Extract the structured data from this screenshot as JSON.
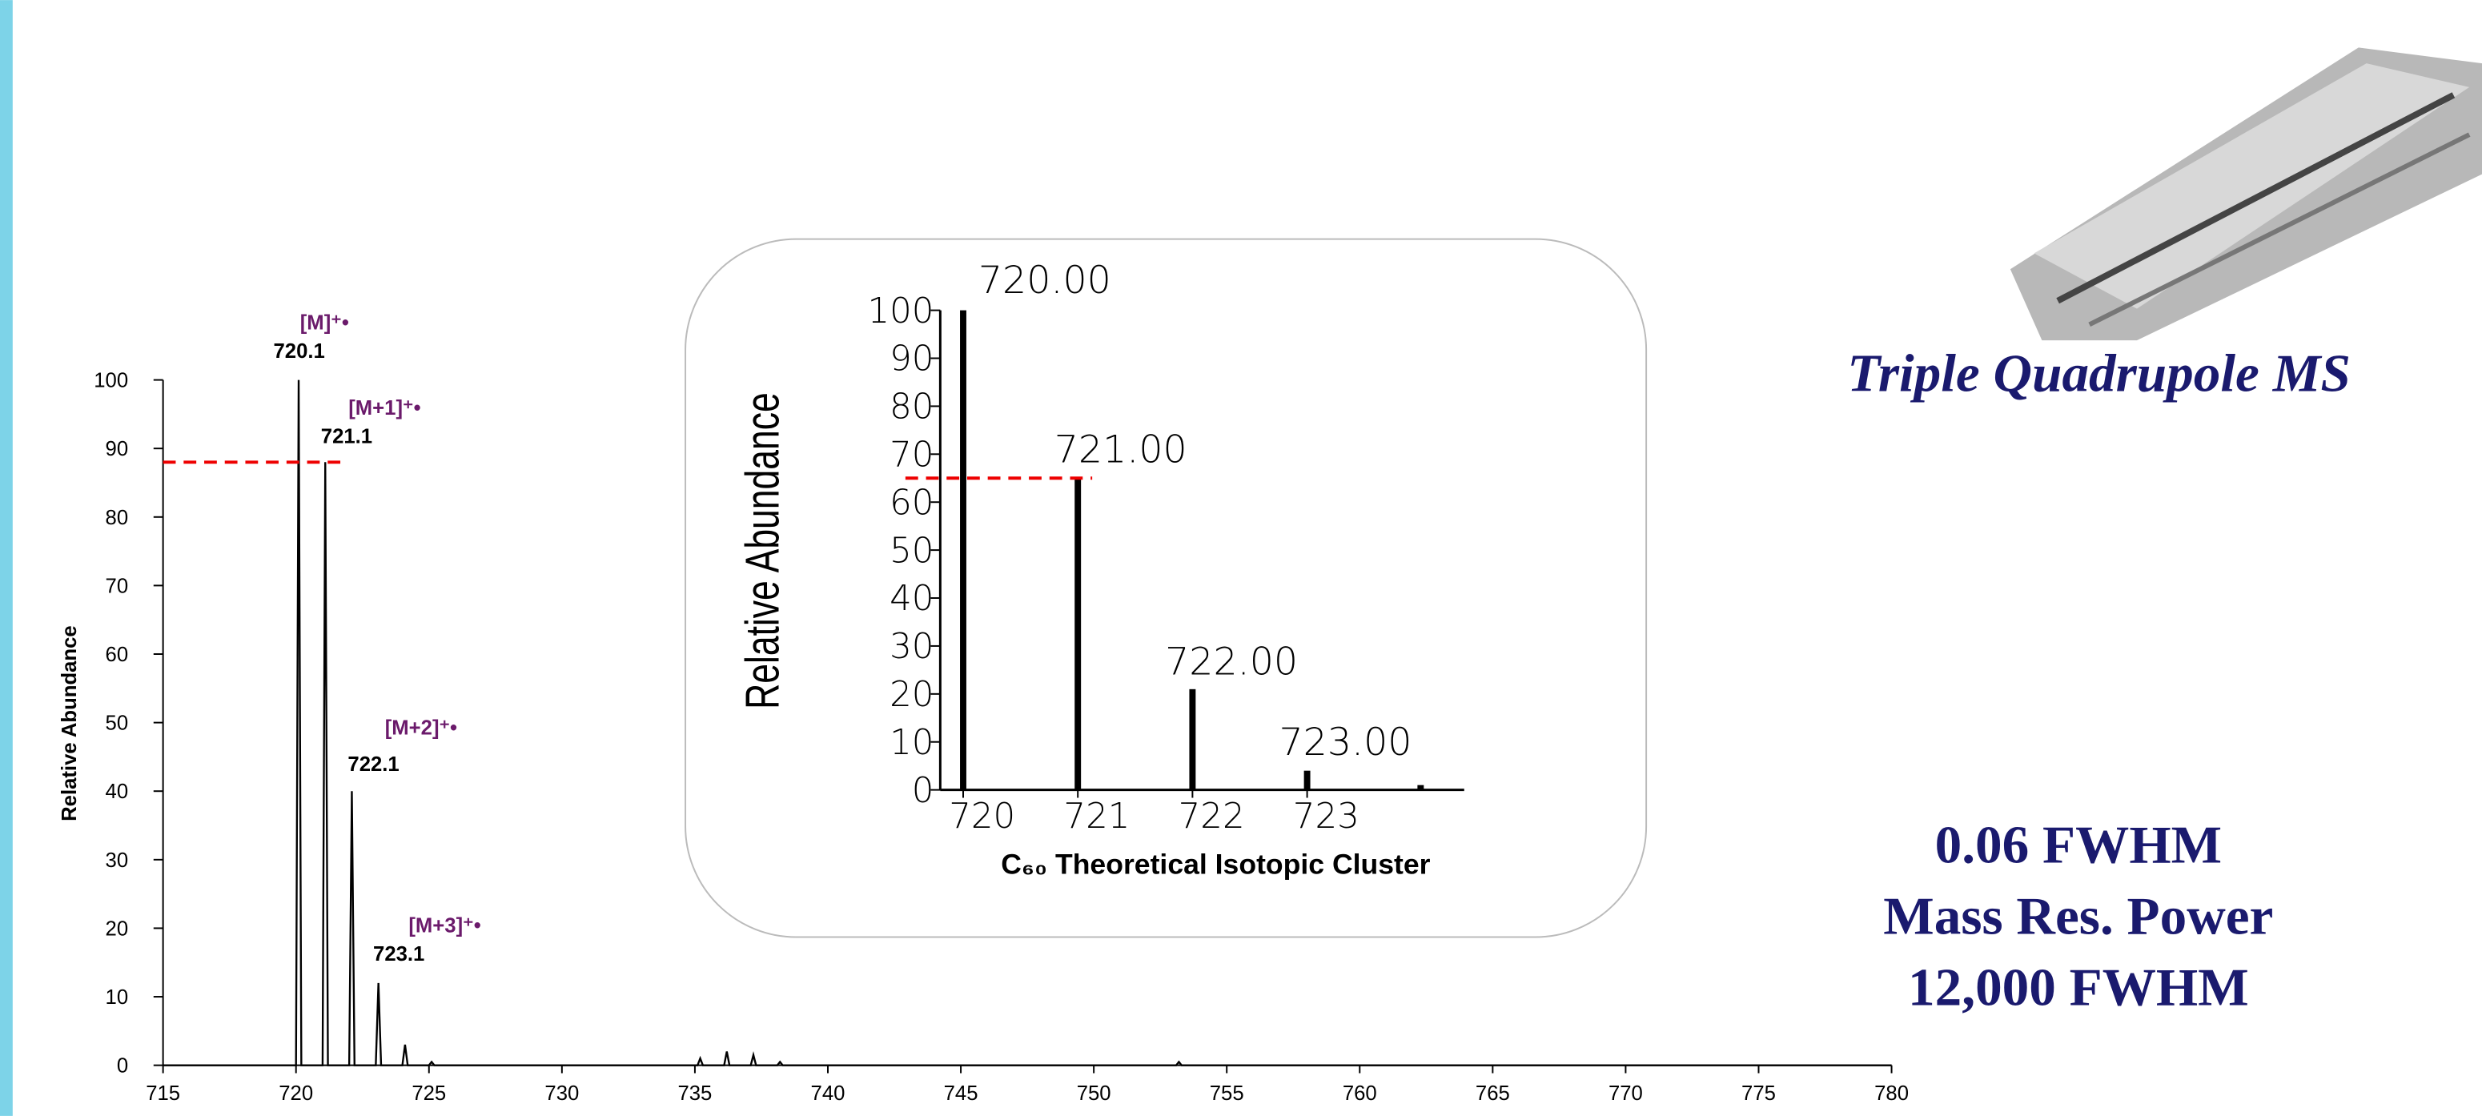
{
  "chart_data": [
    {
      "type": "line",
      "y_label": "Relative Abundance",
      "x": [
        715,
        720.0,
        720.1,
        720.2,
        721.0,
        721.1,
        721.2,
        722.0,
        722.1,
        722.2,
        723.0,
        723.1,
        723.2,
        724.0,
        724.1,
        724.2,
        725.0,
        725.1,
        725.2,
        735.1,
        735.2,
        735.3,
        736.1,
        736.2,
        736.3,
        737.1,
        737.2,
        737.3,
        738.1,
        738.2,
        738.3,
        753.1,
        753.2,
        753.3,
        780
      ],
      "values": [
        0,
        0,
        100,
        0,
        0,
        88,
        0,
        0,
        40,
        0,
        0,
        12,
        0,
        0,
        3,
        0,
        0,
        0.5,
        0,
        0,
        1,
        0,
        0,
        2,
        0,
        0,
        1.5,
        0,
        0,
        0.5,
        0,
        0,
        0.5,
        0,
        0
      ],
      "color": "#000000",
      "peak_labels": [
        "720.1",
        "721.1",
        "722.1",
        "723.1"
      ],
      "ion_labels": [
        "[M]⁺•",
        "[M+1]⁺•",
        "[M+2]⁺•",
        "[M+3]⁺•"
      ],
      "reference_value": 88,
      "xlim": [
        715,
        780
      ],
      "xticks": [
        715,
        720,
        725,
        730,
        735,
        740,
        745,
        750,
        755,
        760,
        765,
        770,
        775,
        780
      ],
      "ylim": [
        0,
        100
      ],
      "yticks": [
        0,
        10,
        20,
        30,
        40,
        50,
        60,
        70,
        80,
        90,
        100
      ]
    },
    {
      "type": "bar",
      "title": "C₆₀ Theoretical Isotopic Cluster",
      "y_label": "Relative Abundance",
      "x": [
        720,
        721,
        722,
        723,
        723.99
      ],
      "values": [
        100,
        65,
        21,
        4,
        1
      ],
      "color": "#000000",
      "peak_labels": [
        "720.00",
        "721.00",
        "722.00",
        "723.00"
      ],
      "reference_value": 65,
      "xlim": [
        719.8,
        724.37
      ],
      "xticks": [
        720,
        721,
        722,
        723
      ],
      "ylim": [
        0,
        100
      ],
      "yticks": [
        0,
        10,
        20,
        30,
        40,
        50,
        60,
        70,
        80,
        90,
        100
      ]
    }
  ],
  "instrument": "Triple Quadrupole MS",
  "specs": [
    "0.06 FWHM",
    "Mass Res. Power",
    "12,000 FWHM"
  ]
}
